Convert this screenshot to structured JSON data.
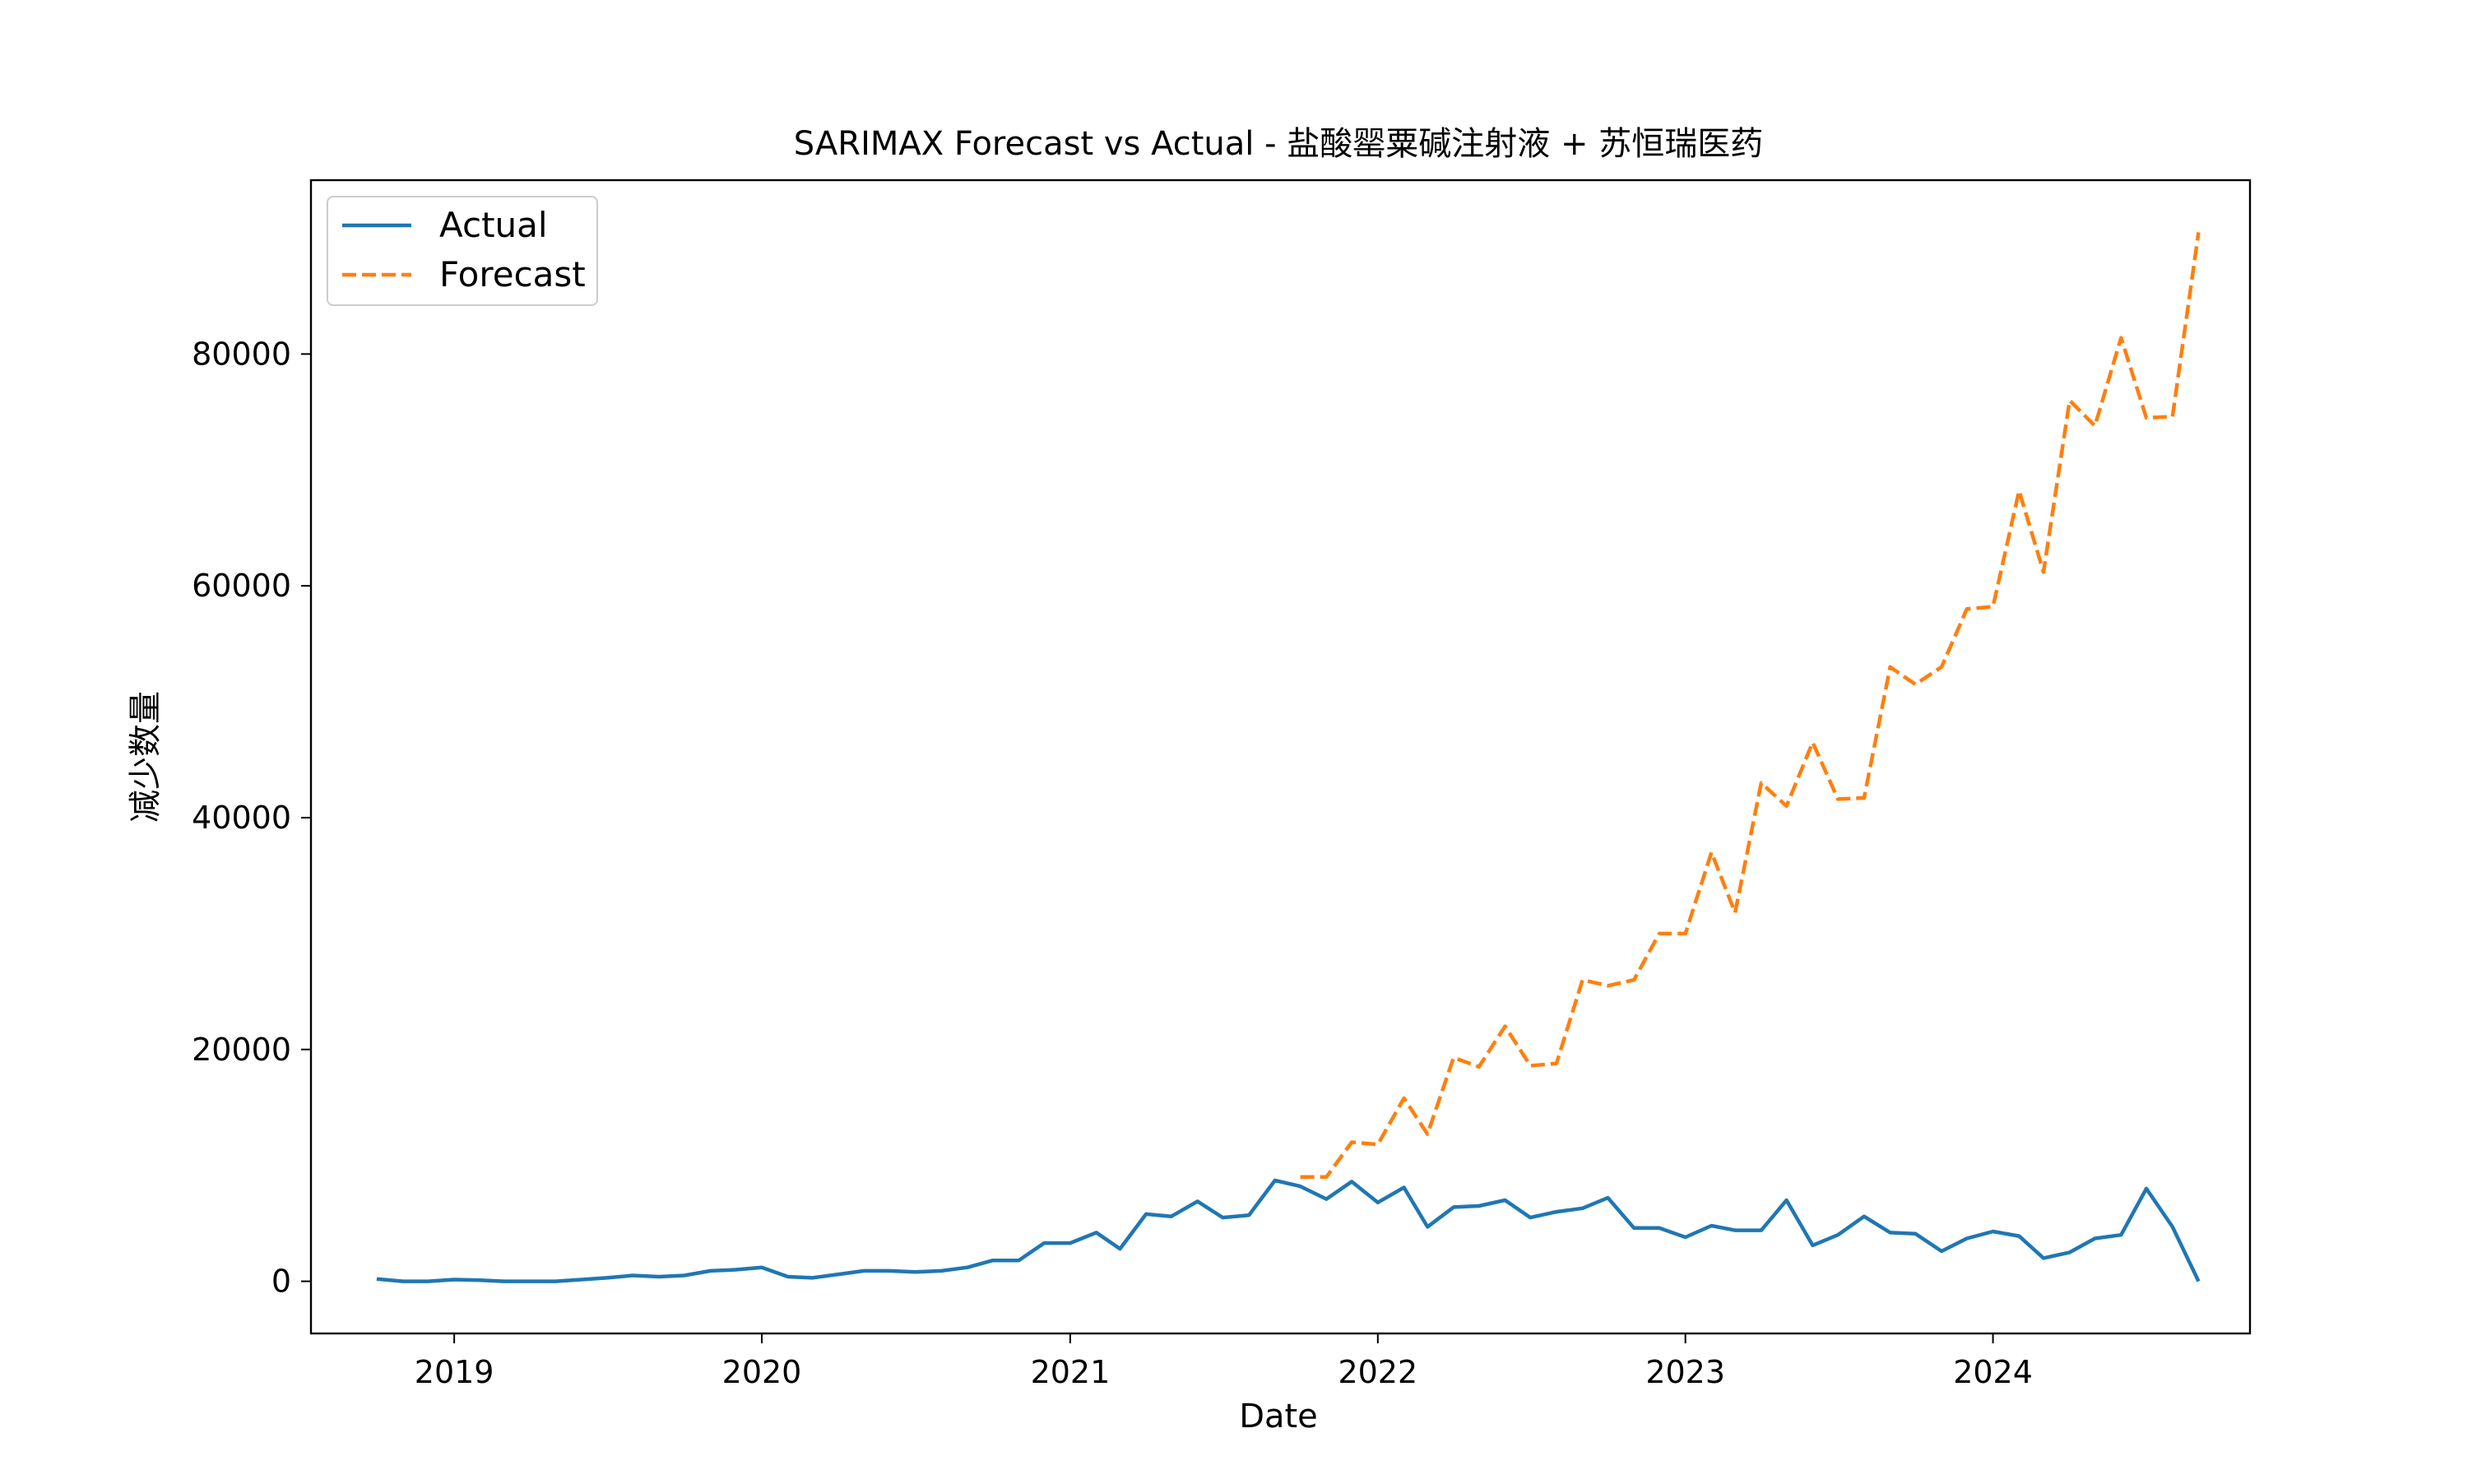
{
  "chart_data": {
    "type": "line",
    "title": "SARIMAX Forecast vs Actual - 盐酸罂粟碱注射液 + 苏恒瑞医药",
    "xlabel": "Date",
    "ylabel": "减少数量",
    "x_ticks": [
      "2019",
      "2020",
      "2021",
      "2022",
      "2023",
      "2024"
    ],
    "y_ticks": [
      "0",
      "20000",
      "40000",
      "60000",
      "80000"
    ],
    "xlim": [
      "2018-07-15",
      "2024-11-01"
    ],
    "ylim": [
      -4500,
      95000
    ],
    "grid": false,
    "legend_position": "top-left",
    "series": [
      {
        "name": "Actual",
        "color": "#1f77b4",
        "style": "solid",
        "x": [
          "2018-10-01",
          "2018-11-01",
          "2018-12-01",
          "2019-01-01",
          "2019-02-01",
          "2019-03-01",
          "2019-04-01",
          "2019-05-01",
          "2019-06-01",
          "2019-07-01",
          "2019-08-01",
          "2019-09-01",
          "2019-10-01",
          "2019-11-01",
          "2019-12-01",
          "2020-01-01",
          "2020-02-01",
          "2020-03-01",
          "2020-04-01",
          "2020-05-01",
          "2020-06-01",
          "2020-07-01",
          "2020-08-01",
          "2020-09-01",
          "2020-10-01",
          "2020-11-01",
          "2020-12-01",
          "2021-01-01",
          "2021-02-01",
          "2021-03-01",
          "2021-04-01",
          "2021-05-01",
          "2021-06-01",
          "2021-07-01",
          "2021-08-01",
          "2021-09-01",
          "2021-10-01",
          "2021-11-01",
          "2021-12-01",
          "2022-01-01",
          "2022-02-01",
          "2022-03-01",
          "2022-04-01",
          "2022-05-01",
          "2022-06-01",
          "2022-07-01",
          "2022-08-01",
          "2022-09-01",
          "2022-10-01",
          "2022-11-01",
          "2022-12-01",
          "2023-01-01",
          "2023-02-01",
          "2023-03-01",
          "2023-04-01",
          "2023-05-01",
          "2023-06-01",
          "2023-07-01",
          "2023-08-01",
          "2023-09-01",
          "2023-10-01",
          "2023-11-01",
          "2023-12-01",
          "2024-01-01",
          "2024-02-01",
          "2024-03-01",
          "2024-04-01",
          "2024-05-01",
          "2024-06-01",
          "2024-07-01",
          "2024-08-01",
          "2024-09-01"
        ],
        "values": [
          200,
          0,
          0,
          150,
          100,
          0,
          0,
          0,
          150,
          300,
          500,
          400,
          500,
          900,
          1000,
          1200,
          400,
          300,
          600,
          900,
          900,
          800,
          900,
          1200,
          1800,
          1800,
          3300,
          3300,
          4200,
          2800,
          5800,
          5600,
          6900,
          5500,
          5700,
          8700,
          8200,
          7100,
          8600,
          6800,
          8100,
          4700,
          6400,
          6500,
          7000,
          5500,
          6000,
          6300,
          7200,
          4600,
          4600,
          3800,
          4800,
          4400,
          4400,
          7000,
          3100,
          4000,
          5600,
          4200,
          4100,
          2600,
          3700,
          4300,
          3900,
          2000,
          2500,
          3700,
          4000,
          8000,
          4700,
          0
        ]
      },
      {
        "name": "Forecast",
        "color": "#ff7f0e",
        "style": "dashed",
        "x": [
          "2021-10-01",
          "2021-11-01",
          "2021-12-01",
          "2022-01-01",
          "2022-02-01",
          "2022-03-01",
          "2022-04-01",
          "2022-05-01",
          "2022-06-01",
          "2022-07-01",
          "2022-08-01",
          "2022-09-01",
          "2022-10-01",
          "2022-11-01",
          "2022-12-01",
          "2023-01-01",
          "2023-02-01",
          "2023-03-01",
          "2023-04-01",
          "2023-05-01",
          "2023-06-01",
          "2023-07-01",
          "2023-08-01",
          "2023-09-01",
          "2023-10-01",
          "2023-11-01",
          "2023-12-01",
          "2024-01-01",
          "2024-02-01",
          "2024-03-01",
          "2024-04-01",
          "2024-05-01",
          "2024-06-01",
          "2024-07-01",
          "2024-08-01",
          "2024-09-01"
        ],
        "values": [
          9000,
          9000,
          12000,
          11800,
          15800,
          12700,
          19300,
          18500,
          22000,
          18600,
          18800,
          26000,
          25500,
          26000,
          30000,
          30000,
          37000,
          31800,
          43000,
          41000,
          46500,
          41600,
          41700,
          53000,
          51500,
          53000,
          58000,
          58200,
          68200,
          61200,
          76000,
          73800,
          81400,
          74500,
          74600,
          90500
        ]
      }
    ]
  }
}
